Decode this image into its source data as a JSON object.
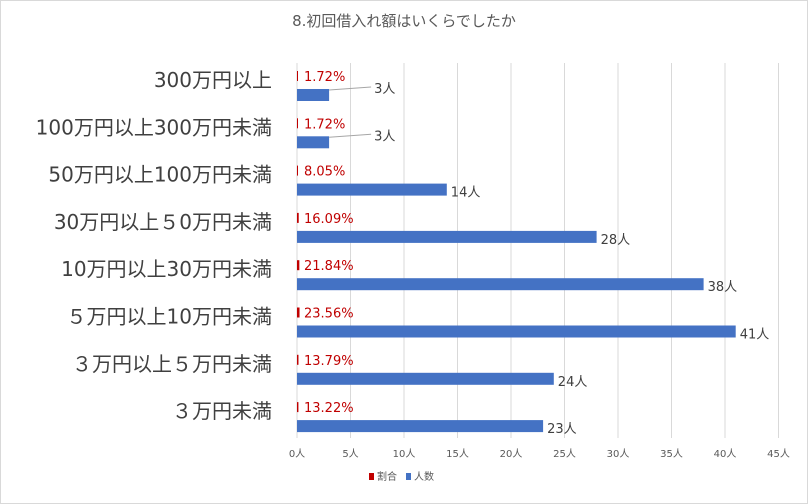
{
  "chart_data": {
    "type": "bar",
    "orientation": "horizontal",
    "title": "8.初回借入れ額はいくらでしたか",
    "categories": [
      "300万円以上",
      "100万円以上300万円未満",
      "50万円以上100万円未満",
      "30万円以上５0万円未満",
      "10万円以上30万円未満",
      "５万円以上10万円未満",
      "３万円以上５万円未満",
      "３万円未満"
    ],
    "series": [
      {
        "name": "割合",
        "color": "#c00000",
        "values": [
          0.0172,
          0.0172,
          0.0805,
          0.1609,
          0.2184,
          0.2356,
          0.1379,
          0.1322
        ],
        "labels": [
          "1.72%",
          "1.72%",
          "8.05%",
          "16.09%",
          "21.84%",
          "23.56%",
          "13.79%",
          "13.22%"
        ]
      },
      {
        "name": "人数",
        "color": "#4472c4",
        "values": [
          3,
          3,
          14,
          28,
          38,
          41,
          24,
          23
        ],
        "labels": [
          "3人",
          "3人",
          "14人",
          "28人",
          "38人",
          "41人",
          "24人",
          "23人"
        ]
      }
    ],
    "x_ticks": [
      "0人",
      "5人",
      "10人",
      "15人",
      "20人",
      "25人",
      "30人",
      "35人",
      "40人",
      "45人"
    ],
    "xlim": [
      0,
      45
    ],
    "grid": true,
    "legend": "bottom"
  }
}
